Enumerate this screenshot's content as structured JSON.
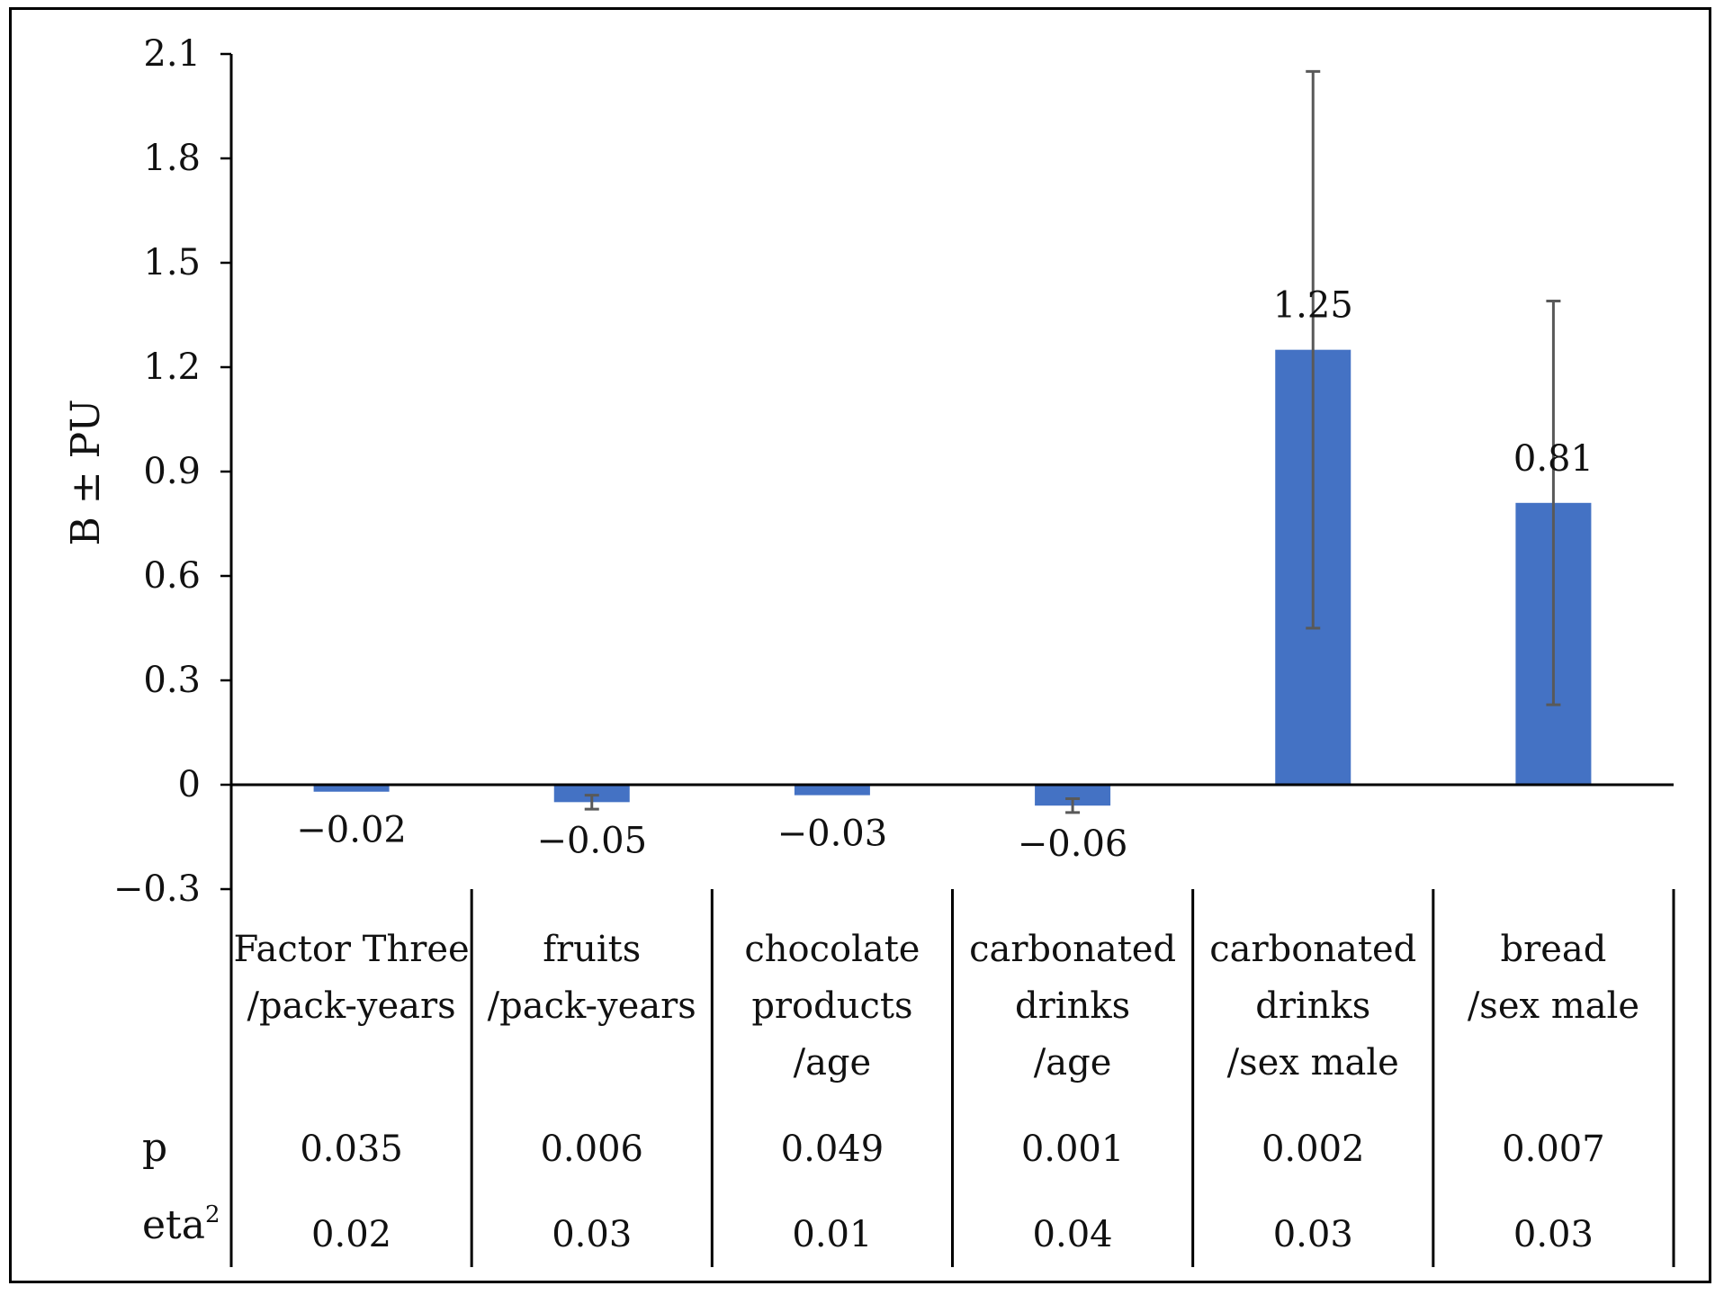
{
  "chart_data": {
    "type": "bar",
    "title": "",
    "xlabel": "",
    "ylabel": "B ± PU",
    "ylim": [
      -0.3,
      2.1
    ],
    "yticks": [
      "2.1",
      "1.8",
      "1.5",
      "1.2",
      "0.9",
      "0.6",
      "0.3",
      "0",
      "−0.3"
    ],
    "ytick_values": [
      2.1,
      1.8,
      1.5,
      1.2,
      0.9,
      0.6,
      0.3,
      0,
      -0.3
    ],
    "grid": false,
    "bar_color": "#4472C4",
    "error_color": "#595959",
    "categories": [
      [
        "Factor Three",
        "/pack-years"
      ],
      [
        "fruits",
        "/pack-years"
      ],
      [
        "chocolate",
        "products",
        "/age"
      ],
      [
        "carbonated",
        "drinks",
        "/age"
      ],
      [
        "carbonated",
        "drinks",
        "/sex male"
      ],
      [
        "bread",
        "/sex male"
      ]
    ],
    "values": [
      -0.02,
      -0.05,
      -0.03,
      -0.06,
      1.25,
      0.81
    ],
    "value_labels": [
      "−0.02",
      "−0.05",
      "−0.03",
      "−0.06",
      "1.25",
      "0.81"
    ],
    "errors": [
      0.0,
      0.02,
      0.0,
      0.02,
      0.8,
      0.58
    ],
    "table": {
      "p_label": "p",
      "p_values": [
        "0.035",
        "0.006",
        "0.049",
        "0.001",
        "0.002",
        "0.007"
      ],
      "eta_label": "eta",
      "eta_sup": "2",
      "eta_values": [
        "0.02",
        "0.03",
        "0.01",
        "0.04",
        "0.03",
        "0.03"
      ]
    }
  }
}
